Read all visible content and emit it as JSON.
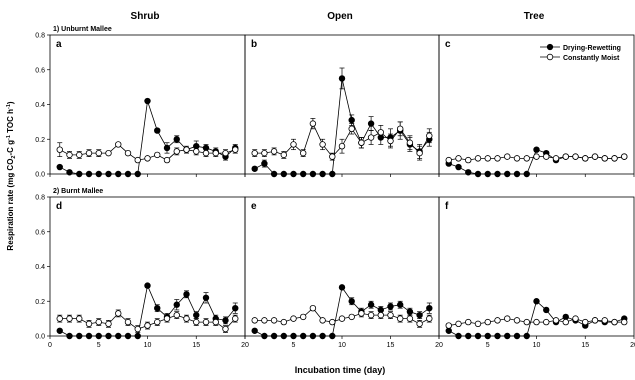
{
  "chart_data": {
    "type": "scatter",
    "figure": {
      "ylabel_parts": [
        "Respiration rate (mg CO",
        "2",
        "-C g",
        "-1",
        " TOC h",
        "-1",
        ")"
      ],
      "xlabel": "Incubation time (day)",
      "columns": [
        "Shrub",
        "Open",
        "Tree"
      ],
      "rows": [
        "1) Unburnt Mallee",
        "2) Burnt Mallee"
      ]
    },
    "xlim": [
      0,
      20
    ],
    "ylim": [
      0,
      0.8
    ],
    "yticks": [
      "0.0",
      "0.2",
      "0.4",
      "0.6",
      "0.8"
    ],
    "xticks": [
      0,
      5,
      10,
      15,
      20
    ],
    "legend": {
      "position": "top-right",
      "entries": [
        {
          "name": "Drying-Rewetting",
          "marker": "filled-circle"
        },
        {
          "name": "Constantly Moist",
          "marker": "open-circle"
        }
      ]
    },
    "panels": [
      {
        "label": "a",
        "row": 0,
        "col": 0,
        "series": [
          {
            "name": "Drying-Rewetting",
            "x": [
              1,
              2,
              3,
              4,
              5,
              6,
              7,
              8,
              9,
              10,
              11,
              12,
              13,
              14,
              15,
              16,
              17,
              18,
              19
            ],
            "y": [
              0.04,
              0.01,
              0.0,
              0.0,
              0.0,
              0.0,
              0.0,
              0.0,
              0.0,
              0.42,
              0.25,
              0.15,
              0.2,
              0.14,
              0.16,
              0.15,
              0.13,
              0.1,
              0.15
            ],
            "err": [
              0,
              0,
              0,
              0,
              0,
              0,
              0,
              0,
              0,
              0.01,
              0.01,
              0.03,
              0.02,
              0.02,
              0.03,
              0.02,
              0.02,
              0.02,
              0.02
            ]
          },
          {
            "name": "Constantly Moist",
            "x": [
              1,
              2,
              3,
              4,
              5,
              6,
              7,
              8,
              9,
              10,
              11,
              12,
              13,
              14,
              15,
              16,
              17,
              18,
              19
            ],
            "y": [
              0.14,
              0.11,
              0.11,
              0.12,
              0.12,
              0.12,
              0.17,
              0.12,
              0.08,
              0.09,
              0.11,
              0.08,
              0.13,
              0.14,
              0.13,
              0.12,
              0.12,
              0.12,
              0.14
            ],
            "err": [
              0.04,
              0.02,
              0.02,
              0.02,
              0.02,
              0.01,
              0.01,
              0.01,
              0.01,
              0.01,
              0.01,
              0.01,
              0.02,
              0.01,
              0.02,
              0.02,
              0.02,
              0.02,
              0.02
            ]
          }
        ]
      },
      {
        "label": "b",
        "row": 0,
        "col": 1,
        "series": [
          {
            "name": "Drying-Rewetting",
            "x": [
              1,
              2,
              3,
              4,
              5,
              6,
              7,
              8,
              9,
              10,
              11,
              12,
              13,
              14,
              15,
              16,
              17,
              18,
              19
            ],
            "y": [
              0.03,
              0.06,
              0.0,
              0.0,
              0.0,
              0.0,
              0.0,
              0.0,
              0.0,
              0.55,
              0.31,
              0.18,
              0.29,
              0.21,
              0.21,
              0.25,
              0.17,
              0.13,
              0.2
            ],
            "err": [
              0.01,
              0.02,
              0,
              0,
              0,
              0,
              0,
              0,
              0,
              0.06,
              0.03,
              0.03,
              0.04,
              0.04,
              0.05,
              0.05,
              0.04,
              0.04,
              0.04
            ]
          },
          {
            "name": "Constantly Moist",
            "x": [
              1,
              2,
              3,
              4,
              5,
              6,
              7,
              8,
              9,
              10,
              11,
              12,
              13,
              14,
              15,
              16,
              17,
              18,
              19
            ],
            "y": [
              0.12,
              0.12,
              0.13,
              0.11,
              0.17,
              0.12,
              0.29,
              0.17,
              0.1,
              0.16,
              0.26,
              0.18,
              0.21,
              0.24,
              0.19,
              0.26,
              0.18,
              0.12,
              0.22
            ],
            "err": [
              0.02,
              0.02,
              0.02,
              0.02,
              0.03,
              0.02,
              0.03,
              0.03,
              0.02,
              0.04,
              0.03,
              0.03,
              0.04,
              0.04,
              0.04,
              0.04,
              0.04,
              0.04,
              0.04
            ]
          }
        ]
      },
      {
        "label": "c",
        "row": 0,
        "col": 2,
        "series": [
          {
            "name": "Drying-Rewetting",
            "x": [
              1,
              2,
              3,
              4,
              5,
              6,
              7,
              8,
              9,
              10,
              11,
              12,
              13,
              14,
              15,
              16,
              17,
              18,
              19
            ],
            "y": [
              0.06,
              0.04,
              0.01,
              0.0,
              0.0,
              0.0,
              0.0,
              0.0,
              0.0,
              0.14,
              0.12,
              0.08,
              0.1,
              0.1,
              0.09,
              0.1,
              0.09,
              0.09,
              0.1
            ],
            "err": [
              0,
              0,
              0,
              0,
              0,
              0,
              0,
              0,
              0,
              0.01,
              0.01,
              0.01,
              0.01,
              0.01,
              0.01,
              0.01,
              0.01,
              0.01,
              0.01
            ]
          },
          {
            "name": "Constantly Moist",
            "x": [
              1,
              2,
              3,
              4,
              5,
              6,
              7,
              8,
              9,
              10,
              11,
              12,
              13,
              14,
              15,
              16,
              17,
              18,
              19
            ],
            "y": [
              0.08,
              0.09,
              0.08,
              0.09,
              0.09,
              0.09,
              0.1,
              0.09,
              0.09,
              0.1,
              0.1,
              0.09,
              0.1,
              0.1,
              0.09,
              0.1,
              0.09,
              0.09,
              0.1
            ],
            "err": [
              0.01,
              0.01,
              0.01,
              0.01,
              0.01,
              0.01,
              0.01,
              0.01,
              0.01,
              0.01,
              0.01,
              0.01,
              0.01,
              0.01,
              0.01,
              0.01,
              0.01,
              0.01,
              0.01
            ]
          }
        ]
      },
      {
        "label": "d",
        "row": 1,
        "col": 0,
        "series": [
          {
            "name": "Drying-Rewetting",
            "x": [
              1,
              2,
              3,
              4,
              5,
              6,
              7,
              8,
              9,
              10,
              11,
              12,
              13,
              14,
              15,
              16,
              17,
              18,
              19
            ],
            "y": [
              0.03,
              0.0,
              0.0,
              0.0,
              0.0,
              0.0,
              0.0,
              0.0,
              0.0,
              0.29,
              0.16,
              0.11,
              0.18,
              0.24,
              0.12,
              0.22,
              0.1,
              0.09,
              0.16
            ],
            "err": [
              0,
              0,
              0,
              0,
              0,
              0,
              0,
              0,
              0,
              0.01,
              0.02,
              0.02,
              0.03,
              0.02,
              0.02,
              0.03,
              0.02,
              0.02,
              0.03
            ]
          },
          {
            "name": "Constantly Moist",
            "x": [
              1,
              2,
              3,
              4,
              5,
              6,
              7,
              8,
              9,
              10,
              11,
              12,
              13,
              14,
              15,
              16,
              17,
              18,
              19
            ],
            "y": [
              0.1,
              0.1,
              0.1,
              0.07,
              0.08,
              0.07,
              0.13,
              0.08,
              0.04,
              0.06,
              0.08,
              0.1,
              0.12,
              0.1,
              0.08,
              0.08,
              0.08,
              0.04,
              0.1
            ],
            "err": [
              0.02,
              0.02,
              0.02,
              0.02,
              0.02,
              0.02,
              0.02,
              0.02,
              0.02,
              0.02,
              0.02,
              0.02,
              0.02,
              0.02,
              0.02,
              0.02,
              0.02,
              0.02,
              0.02
            ]
          }
        ]
      },
      {
        "label": "e",
        "row": 1,
        "col": 1,
        "series": [
          {
            "name": "Drying-Rewetting",
            "x": [
              1,
              2,
              3,
              4,
              5,
              6,
              7,
              8,
              9,
              10,
              11,
              12,
              13,
              14,
              15,
              16,
              17,
              18,
              19
            ],
            "y": [
              0.03,
              0.0,
              0.0,
              0.0,
              0.0,
              0.0,
              0.0,
              0.0,
              0.0,
              0.28,
              0.2,
              0.14,
              0.18,
              0.15,
              0.17,
              0.18,
              0.14,
              0.12,
              0.16
            ],
            "err": [
              0,
              0,
              0,
              0,
              0,
              0,
              0,
              0,
              0,
              0.01,
              0.02,
              0.02,
              0.02,
              0.02,
              0.02,
              0.02,
              0.02,
              0.02,
              0.03
            ]
          },
          {
            "name": "Constantly Moist",
            "x": [
              1,
              2,
              3,
              4,
              5,
              6,
              7,
              8,
              9,
              10,
              11,
              12,
              13,
              14,
              15,
              16,
              17,
              18,
              19
            ],
            "y": [
              0.09,
              0.09,
              0.09,
              0.08,
              0.1,
              0.11,
              0.16,
              0.09,
              0.08,
              0.1,
              0.11,
              0.13,
              0.12,
              0.12,
              0.12,
              0.1,
              0.1,
              0.07,
              0.1
            ],
            "err": [
              0.01,
              0.01,
              0.01,
              0.01,
              0.01,
              0.01,
              0.01,
              0.01,
              0.01,
              0.01,
              0.01,
              0.02,
              0.02,
              0.02,
              0.02,
              0.02,
              0.02,
              0.02,
              0.02
            ]
          }
        ]
      },
      {
        "label": "f",
        "row": 1,
        "col": 2,
        "series": [
          {
            "name": "Drying-Rewetting",
            "x": [
              1,
              2,
              3,
              4,
              5,
              6,
              7,
              8,
              9,
              10,
              11,
              12,
              13,
              14,
              15,
              16,
              17,
              18,
              19
            ],
            "y": [
              0.03,
              0.0,
              0.0,
              0.0,
              0.0,
              0.0,
              0.0,
              0.0,
              0.0,
              0.2,
              0.15,
              0.08,
              0.11,
              0.09,
              0.06,
              0.09,
              0.08,
              0.08,
              0.1
            ],
            "err": [
              0,
              0,
              0,
              0,
              0,
              0,
              0,
              0,
              0,
              0.01,
              0.01,
              0.01,
              0.01,
              0.01,
              0.01,
              0.01,
              0.01,
              0.01,
              0.01
            ]
          },
          {
            "name": "Constantly Moist",
            "x": [
              1,
              2,
              3,
              4,
              5,
              6,
              7,
              8,
              9,
              10,
              11,
              12,
              13,
              14,
              15,
              16,
              17,
              18,
              19
            ],
            "y": [
              0.06,
              0.07,
              0.08,
              0.07,
              0.08,
              0.09,
              0.1,
              0.09,
              0.08,
              0.08,
              0.08,
              0.09,
              0.08,
              0.1,
              0.08,
              0.09,
              0.09,
              0.08,
              0.08
            ],
            "err": [
              0.01,
              0.01,
              0.01,
              0.01,
              0.01,
              0.01,
              0.01,
              0.01,
              0.01,
              0.01,
              0.01,
              0.01,
              0.01,
              0.01,
              0.01,
              0.01,
              0.01,
              0.01,
              0.01
            ]
          }
        ]
      }
    ]
  }
}
